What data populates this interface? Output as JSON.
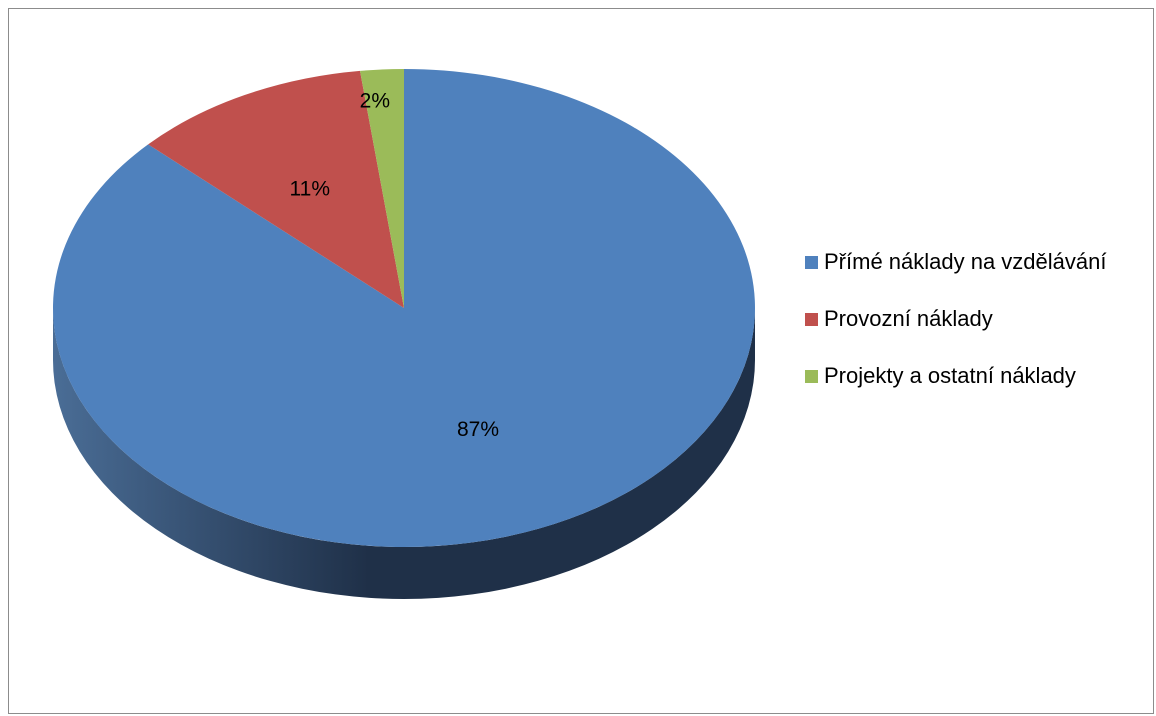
{
  "chart_data": {
    "type": "pie",
    "title": "",
    "slices": [
      {
        "label": "Přímé náklady na vzdělávání",
        "value": 87,
        "display": "87%",
        "color": "#4F81BD",
        "side_light": "#4a6d96",
        "side_dark": "#1f3048"
      },
      {
        "label": "Provozní náklady",
        "value": 11,
        "display": "11%",
        "color": "#C0504D",
        "side_light": "#97403d",
        "side_dark": "#5a2422"
      },
      {
        "label": "Projekty a ostatní náklady",
        "value": 2,
        "display": "2%",
        "color": "#9BBB59",
        "side_light": "#7a9446",
        "side_dark": "#4a5a2a"
      }
    ],
    "style": "3d-pie",
    "legend_position": "right"
  }
}
